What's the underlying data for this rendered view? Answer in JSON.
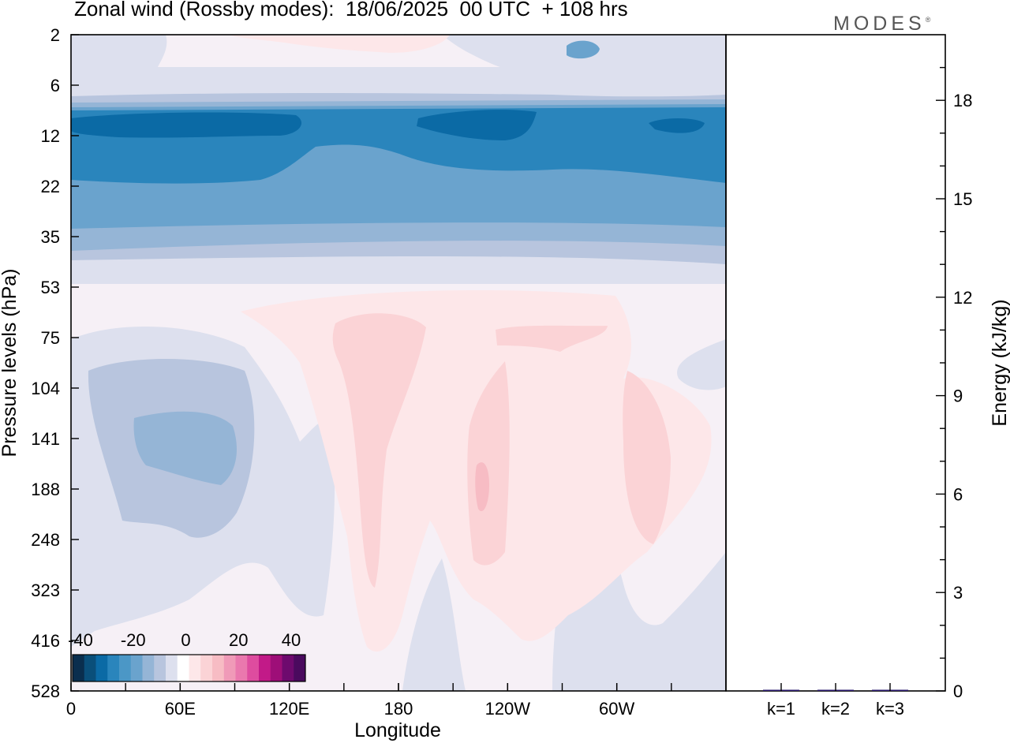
{
  "title": "Zonal wind (Rossby modes):  18/06/2025  00 UTC  + 108 hrs",
  "logo": "MODES",
  "logo_mark": "®",
  "colors": {
    "bg_neg_fill": "#f6f0f6",
    "neg": [
      "#0a2e4e",
      "#0a4f7a",
      "#0b6aa5",
      "#2a85bc",
      "#4b97c6",
      "#6aa3cd",
      "#95b5d6",
      "#b8c5de",
      "#dde0ee"
    ],
    "pos": [
      "#fde7e9",
      "#fbd3d6",
      "#f7bcc4",
      "#f09ab8",
      "#ea78ae",
      "#de4c9f",
      "#c21a88",
      "#9e0e78",
      "#6e0a6e",
      "#4a0a5e"
    ]
  },
  "chart_data": [
    {
      "type": "heatmap",
      "title": "Zonal wind (Rossby modes):  18/06/2025  00 UTC  + 108 hrs",
      "xlabel": "Longitude",
      "ylabel": "Pressure levels (hPa)",
      "x_ticks": [
        "0",
        "60E",
        "120E",
        "180",
        "120W",
        "60W"
      ],
      "y_ticks": [
        "2",
        "6",
        "12",
        "22",
        "35",
        "53",
        "75",
        "104",
        "141",
        "188",
        "248",
        "323",
        "416",
        "528"
      ],
      "y_scale": "log (pressure)",
      "colorbar": {
        "tick_labels": [
          "-40",
          "-20",
          "0",
          "20",
          "40"
        ],
        "range": [
          -40,
          40
        ],
        "step": 5,
        "placement": "bottom-left"
      },
      "description_of_field": "Strong easterlies (about -25 to -35 m/s) near 10-20 hPa, weak westerlies (5-15 m/s) near 2 hPa and between 75-416 hPa near 180 and 120W-60W, weak easterlies (-10 to -15 m/s) near 60E at 104-188 hPa"
    },
    {
      "type": "bar",
      "ylabel": "Energy (kJ/kg)",
      "categories": [
        "k=1",
        "k=2",
        "k=3"
      ],
      "values": [
        0.03,
        0.02,
        0.01
      ],
      "ylim": [
        0,
        20
      ],
      "y_ticks": [
        "0",
        "3",
        "6",
        "9",
        "12",
        "15",
        "18"
      ],
      "y_axis_side": "right"
    }
  ]
}
